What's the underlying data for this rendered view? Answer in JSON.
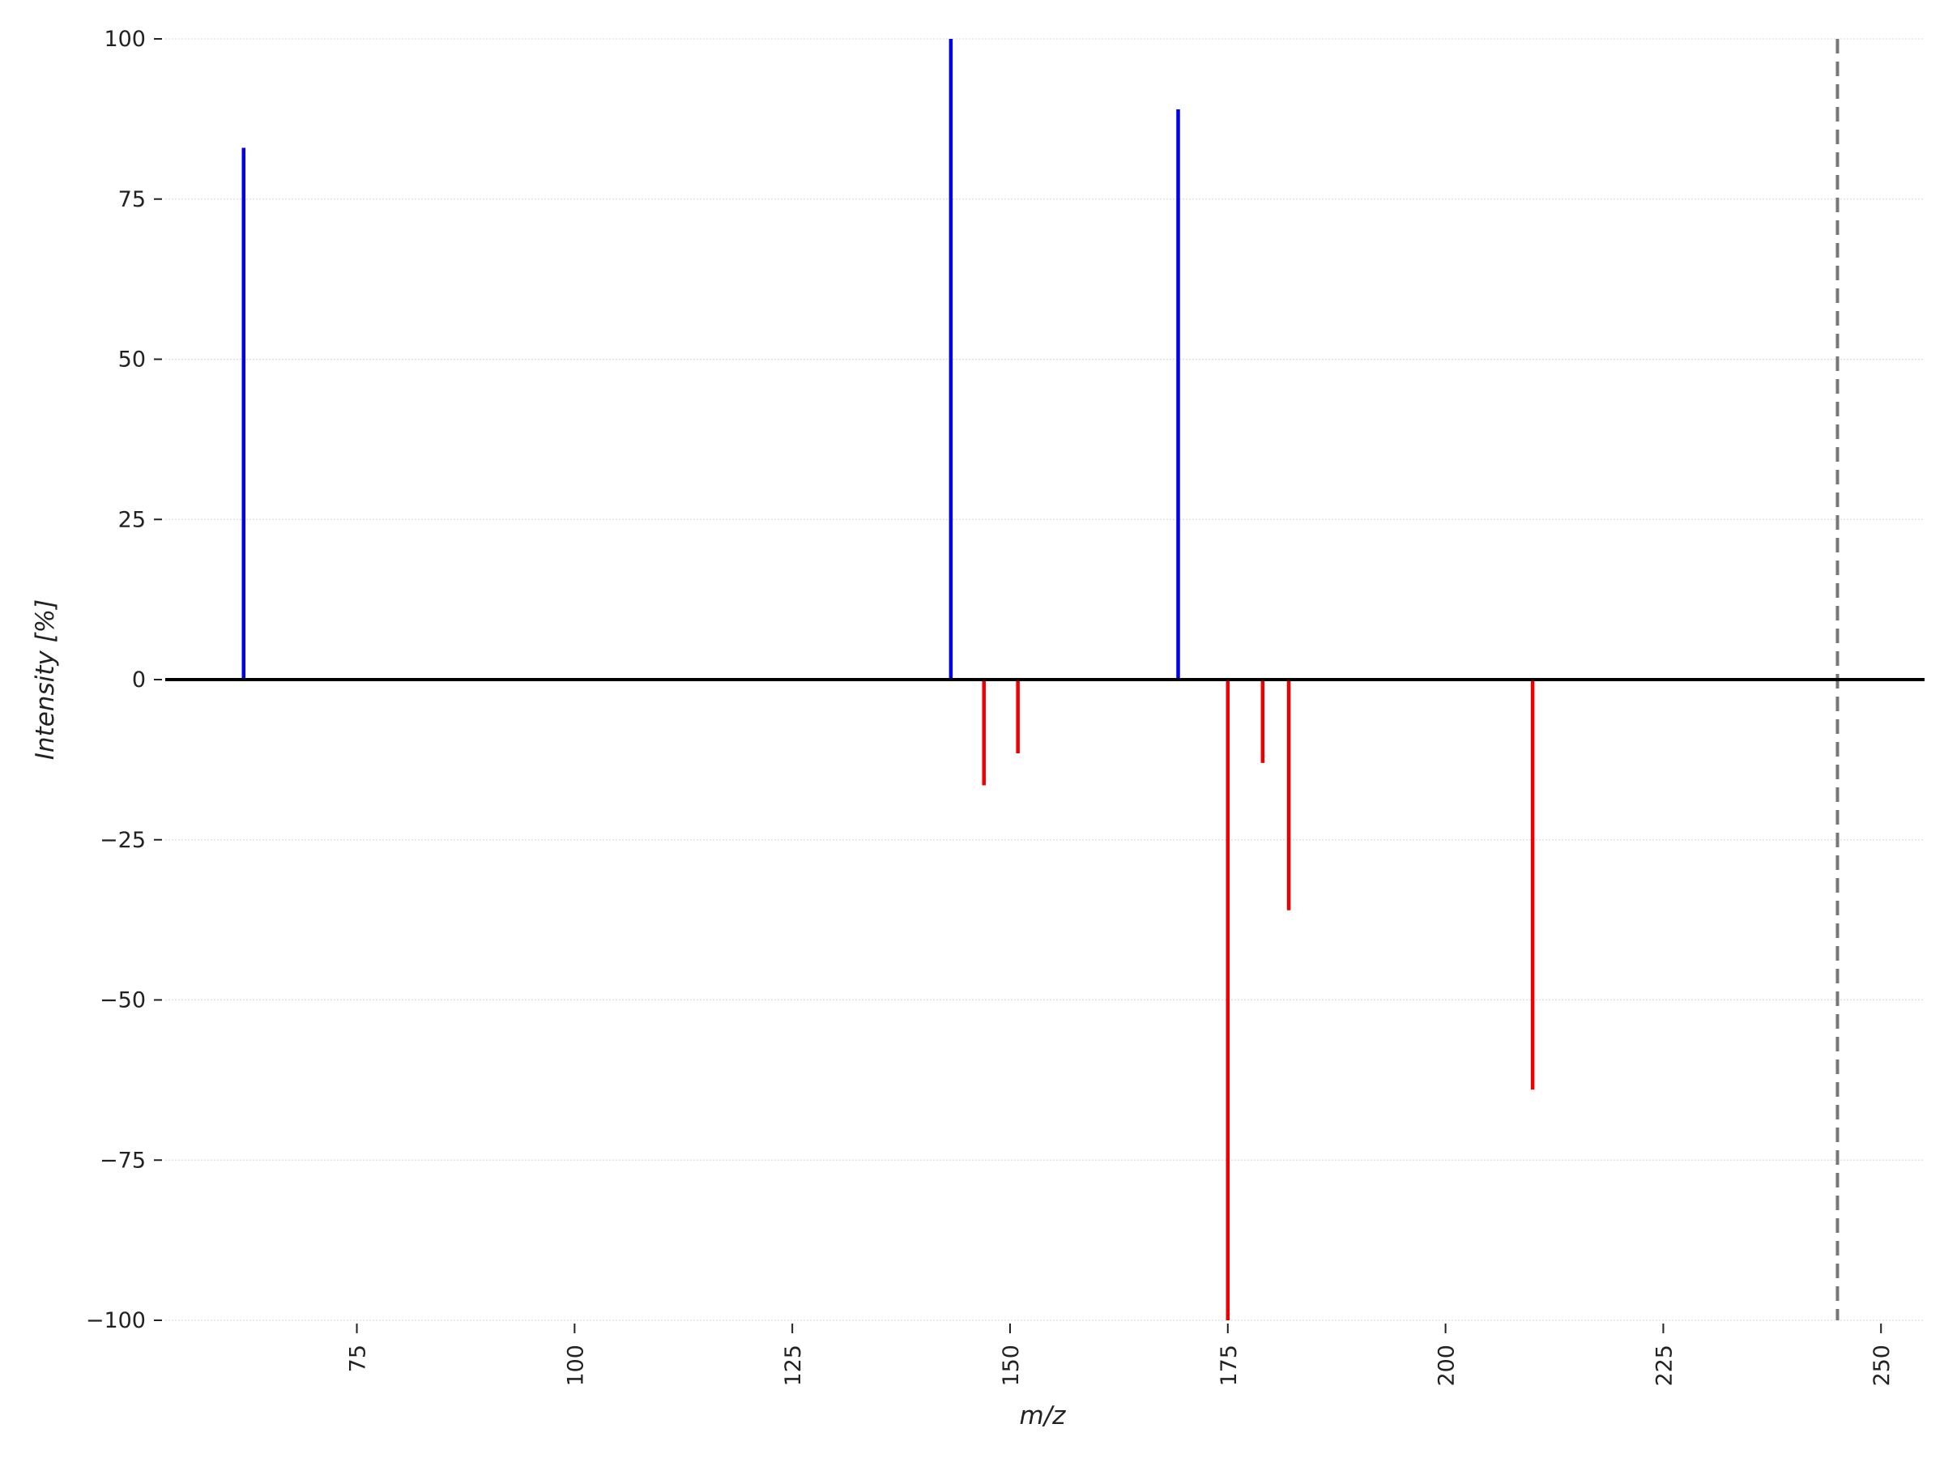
{
  "chart_data": {
    "type": "bar",
    "subtype": "mirror-spectrum",
    "title": "",
    "xlabel": "m/z",
    "ylabel": "Intensity [%]",
    "xlim": [
      53,
      255
    ],
    "ylim": [
      -100,
      100
    ],
    "x_ticks": [
      75,
      100,
      125,
      150,
      175,
      200,
      225,
      250
    ],
    "y_ticks": [
      100,
      75,
      50,
      25,
      0,
      -25,
      -50,
      -75,
      -100
    ],
    "grid": "horizontal",
    "series": [
      {
        "color": "#0000ee",
        "peaks": [
          {
            "mz": 62,
            "intensity": 83
          },
          {
            "mz": 143.2,
            "intensity": 100
          },
          {
            "mz": 169.3,
            "intensity": 89
          }
        ]
      },
      {
        "color": "#ee0000",
        "peaks": [
          {
            "mz": 147,
            "intensity": -16.5
          },
          {
            "mz": 150.9,
            "intensity": -11.5
          },
          {
            "mz": 175,
            "intensity": -100
          },
          {
            "mz": 179,
            "intensity": -13
          },
          {
            "mz": 182,
            "intensity": -36
          },
          {
            "mz": 210,
            "intensity": -64
          }
        ]
      }
    ],
    "reference_line": {
      "mz": 245,
      "style": "dashed",
      "color": "#777777"
    },
    "zero_line_color": "#000000"
  }
}
